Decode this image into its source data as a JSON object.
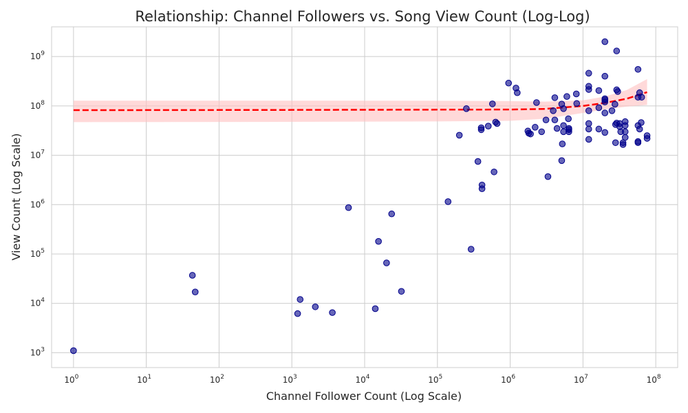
{
  "chart_data": {
    "type": "scatter",
    "title": "Relationship: Channel Followers vs. Song View Count (Log-Log)",
    "xlabel": "Channel Follower Count (Log Scale)",
    "ylabel": "View Count (Log Scale)",
    "xscale": "log",
    "yscale": "log",
    "xlim": [
      0.5,
      200000000
    ],
    "ylim": [
      500,
      4000000000
    ],
    "x_ticks": [
      {
        "value": 1,
        "base": "10",
        "exp": "0"
      },
      {
        "value": 10,
        "base": "10",
        "exp": "1"
      },
      {
        "value": 100,
        "base": "10",
        "exp": "2"
      },
      {
        "value": 1000,
        "base": "10",
        "exp": "3"
      },
      {
        "value": 10000,
        "base": "10",
        "exp": "4"
      },
      {
        "value": 100000,
        "base": "10",
        "exp": "5"
      },
      {
        "value": 1000000,
        "base": "10",
        "exp": "6"
      },
      {
        "value": 10000000,
        "base": "10",
        "exp": "7"
      },
      {
        "value": 100000000,
        "base": "10",
        "exp": "8"
      }
    ],
    "y_ticks": [
      {
        "value": 1000,
        "base": "10",
        "exp": "3"
      },
      {
        "value": 10000,
        "base": "10",
        "exp": "4"
      },
      {
        "value": 100000,
        "base": "10",
        "exp": "5"
      },
      {
        "value": 1000000,
        "base": "10",
        "exp": "6"
      },
      {
        "value": 10000000,
        "base": "10",
        "exp": "7"
      },
      {
        "value": 100000000,
        "base": "10",
        "exp": "8"
      },
      {
        "value": 1000000000,
        "base": "10",
        "exp": "9"
      }
    ],
    "grid": true,
    "point_color": "#00008b",
    "trend_color": "#ff0000",
    "band_color": "#ffc0c0",
    "points": [
      [
        1,
        1100
      ],
      [
        43,
        37000
      ],
      [
        47,
        17000
      ],
      [
        1200,
        6200
      ],
      [
        1300,
        12000
      ],
      [
        2100,
        8500
      ],
      [
        3600,
        6500
      ],
      [
        6000,
        870000
      ],
      [
        14000,
        7800
      ],
      [
        15500,
        180000
      ],
      [
        20000,
        66000
      ],
      [
        23500,
        650000
      ],
      [
        32000,
        17500
      ],
      [
        140000,
        1150000
      ],
      [
        200000,
        25500000
      ],
      [
        250000,
        88000000
      ],
      [
        290000,
        125000
      ],
      [
        360000,
        7500000
      ],
      [
        400000,
        36000000
      ],
      [
        400000,
        33000000
      ],
      [
        410000,
        2500000
      ],
      [
        410000,
        2100000
      ],
      [
        500000,
        39000000
      ],
      [
        570000,
        110000000
      ],
      [
        600000,
        4600000
      ],
      [
        630000,
        47000000
      ],
      [
        660000,
        44000000
      ],
      [
        950000,
        290000000
      ],
      [
        1200000,
        230000000
      ],
      [
        1250000,
        185000000
      ],
      [
        1750000,
        31000000
      ],
      [
        1800000,
        28000000
      ],
      [
        1900000,
        27000000
      ],
      [
        2200000,
        37000000
      ],
      [
        2300000,
        117000000
      ],
      [
        2700000,
        30000000
      ],
      [
        3100000,
        52000000
      ],
      [
        3300000,
        3700000
      ],
      [
        3900000,
        80000000
      ],
      [
        4100000,
        147000000
      ],
      [
        4100000,
        52000000
      ],
      [
        4400000,
        35000000
      ],
      [
        5100000,
        109000000
      ],
      [
        5100000,
        7800000
      ],
      [
        5200000,
        17000000
      ],
      [
        5400000,
        88000000
      ],
      [
        5400000,
        40000000
      ],
      [
        5400000,
        30000000
      ],
      [
        6000000,
        155000000
      ],
      [
        6300000,
        55000000
      ],
      [
        6400000,
        35000000
      ],
      [
        6400000,
        33000000
      ],
      [
        6400000,
        30000000
      ],
      [
        8100000,
        175000000
      ],
      [
        8200000,
        112000000
      ],
      [
        12000000,
        460000000
      ],
      [
        12000000,
        250000000
      ],
      [
        12000000,
        215000000
      ],
      [
        12000000,
        80000000
      ],
      [
        12000000,
        44000000
      ],
      [
        12000000,
        34000000
      ],
      [
        12000000,
        21000000
      ],
      [
        16500000,
        205000000
      ],
      [
        16500000,
        92000000
      ],
      [
        16500000,
        34000000
      ],
      [
        20000000,
        2000000000
      ],
      [
        20000000,
        400000000
      ],
      [
        20000000,
        140000000
      ],
      [
        20000000,
        132000000
      ],
      [
        20000000,
        120000000
      ],
      [
        20000000,
        72000000
      ],
      [
        20000000,
        29000000
      ],
      [
        25000000,
        80000000
      ],
      [
        27500000,
        108000000
      ],
      [
        28000000,
        18000000
      ],
      [
        28000000,
        42000000
      ],
      [
        29000000,
        1300000000
      ],
      [
        29000000,
        212000000
      ],
      [
        29000000,
        45000000
      ],
      [
        30000000,
        196000000
      ],
      [
        32000000,
        44000000
      ],
      [
        32000000,
        38000000
      ],
      [
        33000000,
        30000000
      ],
      [
        35500000,
        18000000
      ],
      [
        35500000,
        16500000
      ],
      [
        38000000,
        48000000
      ],
      [
        38000000,
        40000000
      ],
      [
        38000000,
        30000000
      ],
      [
        38000000,
        23000000
      ],
      [
        57000000,
        550000000
      ],
      [
        57000000,
        150000000
      ],
      [
        57000000,
        40000000
      ],
      [
        57000000,
        19000000
      ],
      [
        57000000,
        18000000
      ],
      [
        60000000,
        185000000
      ],
      [
        60000000,
        34000000
      ],
      [
        63000000,
        46000000
      ],
      [
        64000000,
        150000000
      ],
      [
        76000000,
        25000000
      ],
      [
        76000000,
        22000000
      ]
    ],
    "trend_line": [
      [
        1,
        82000000
      ],
      [
        1000,
        83000000
      ],
      [
        100000,
        84000000
      ],
      [
        1000000,
        84500000
      ],
      [
        3000000,
        87000000
      ],
      [
        10000000,
        100000000
      ],
      [
        20000000,
        115000000
      ],
      [
        40000000,
        140000000
      ],
      [
        76000000,
        190000000
      ]
    ],
    "band_upper": [
      [
        1,
        128000000
      ],
      [
        1000,
        128000000
      ],
      [
        100000,
        127000000
      ],
      [
        1000000,
        125000000
      ],
      [
        3000000,
        122000000
      ],
      [
        10000000,
        130000000
      ],
      [
        20000000,
        155000000
      ],
      [
        40000000,
        210000000
      ],
      [
        76000000,
        350000000
      ]
    ],
    "band_lower": [
      [
        1,
        47000000
      ],
      [
        1000,
        47500000
      ],
      [
        100000,
        48500000
      ],
      [
        1000000,
        50000000
      ],
      [
        3000000,
        55000000
      ],
      [
        10000000,
        72000000
      ],
      [
        20000000,
        85000000
      ],
      [
        40000000,
        97000000
      ],
      [
        76000000,
        105000000
      ]
    ]
  }
}
